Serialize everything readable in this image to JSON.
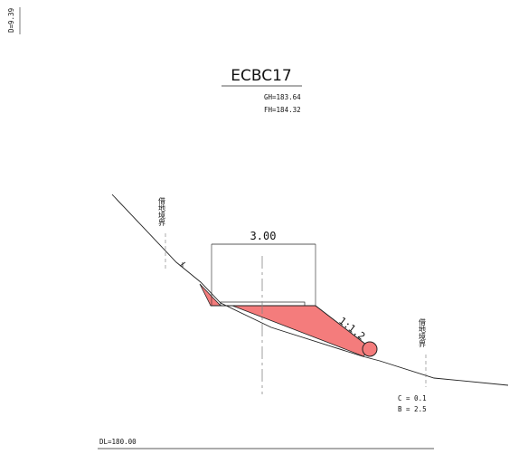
{
  "sheet": {
    "corner_label": "D=9.39",
    "title": "ECBC17",
    "gh": "GH=183.64",
    "fh": "FH=184.32",
    "width_dim": "3.00",
    "slope_ratio": "1:1.2",
    "boundary_left": "借地境界",
    "boundary_right": "借地境界",
    "c_value": "C = 0.1",
    "b_value": "B = 2.5",
    "datum": "DL=180.00"
  },
  "colors": {
    "fill": "#f47c7c",
    "line": "#222222",
    "centerline": "#888888"
  }
}
